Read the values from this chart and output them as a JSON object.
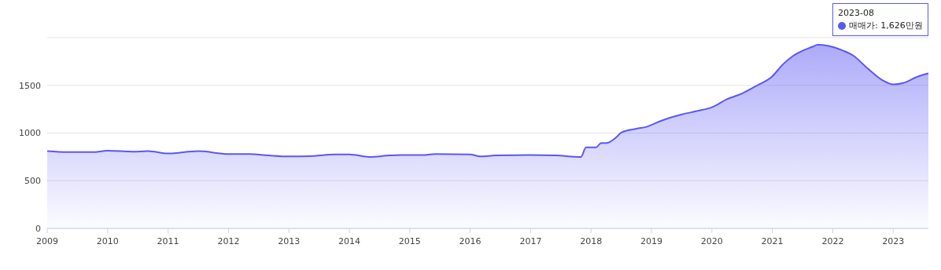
{
  "chart_data": {
    "type": "area",
    "x": [
      "2009-01",
      "2009-05",
      "2009-10",
      "2010-01",
      "2010-06",
      "2010-09",
      "2011-01",
      "2011-07",
      "2012-01",
      "2012-05",
      "2012-09",
      "2013-01",
      "2013-06",
      "2013-10",
      "2014-01",
      "2014-05",
      "2014-09",
      "2015-01",
      "2015-04",
      "2015-06",
      "2016-01",
      "2016-03",
      "2016-06",
      "2017-01",
      "2017-06",
      "2017-11",
      "2017-12",
      "2018-02",
      "2018-03",
      "2018-04",
      "2018-06",
      "2018-07",
      "2018-10",
      "2018-12",
      "2019-03",
      "2019-07",
      "2019-10",
      "2020-01",
      "2020-04",
      "2020-07",
      "2020-10",
      "2021-01",
      "2021-03",
      "2021-05",
      "2021-09",
      "2021-10",
      "2021-12",
      "2022-03",
      "2022-05",
      "2022-08",
      "2022-11",
      "2023-01",
      "2023-03",
      "2023-06",
      "2023-08"
    ],
    "series": [
      {
        "color": "#5b57f5",
        "values": [
          810,
          800,
          800,
          815,
          805,
          810,
          785,
          810,
          780,
          780,
          765,
          755,
          760,
          775,
          775,
          750,
          765,
          770,
          770,
          780,
          775,
          755,
          765,
          770,
          765,
          750,
          850,
          850,
          895,
          895,
          955,
          1005,
          1045,
          1065,
          1130,
          1195,
          1230,
          1270,
          1355,
          1415,
          1500,
          1595,
          1715,
          1805,
          1905,
          1925,
          1915,
          1865,
          1815,
          1675,
          1550,
          1510,
          1525,
          1595,
          1626
        ]
      }
    ],
    "xlim": [
      "2009-01",
      "2023-08"
    ],
    "xticks": [
      "2009",
      "2010",
      "2011",
      "2012",
      "2013",
      "2014",
      "2015",
      "2016",
      "2017",
      "2018",
      "2019",
      "2020",
      "2021",
      "2022",
      "2023"
    ],
    "ylim": [
      0,
      2000
    ],
    "yticks": [
      0,
      500,
      1000,
      1500,
      {
        "value": 2000,
        "label": null
      }
    ],
    "grid": "y",
    "annotations": [
      "2023-08",
      "매매가: 1,626만원"
    ]
  }
}
